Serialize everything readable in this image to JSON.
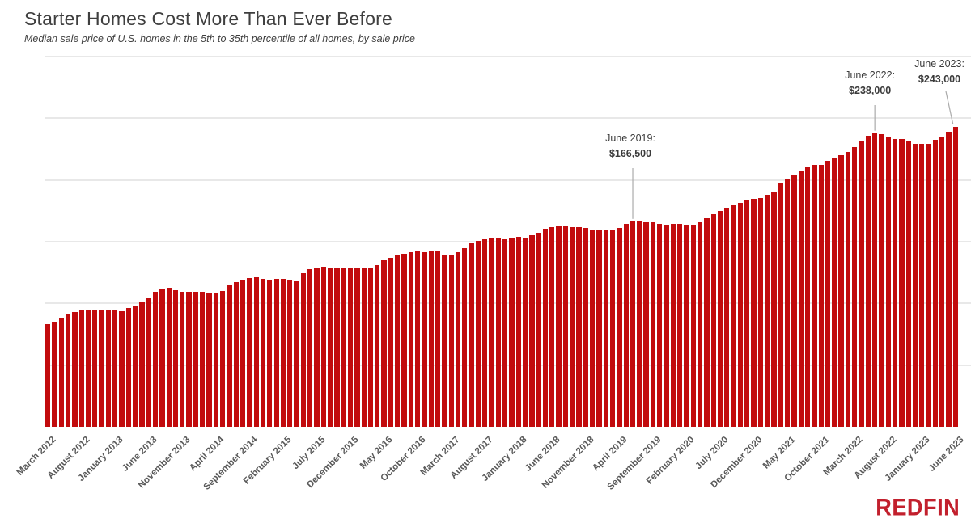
{
  "header": {
    "title": "Starter Homes Cost More Than Ever Before",
    "subtitle": "Median sale price of U.S. homes in the 5th to 35th percentile of all homes, by sale price"
  },
  "chart_data": {
    "type": "bar",
    "title": "Starter Homes Cost More Than Ever Before",
    "subtitle": "Median sale price of U.S. homes in the 5th to 35th percentile of all homes, by sale price",
    "unit": "USD",
    "bar_color": "#c20b0d",
    "gridline_color": "#e8e8e8",
    "legend": "none",
    "ylim": [
      0,
      325000
    ],
    "gridline_interval": 50000,
    "gridlines": [
      50000,
      100000,
      150000,
      200000,
      250000,
      300000
    ],
    "x_start": "March 2012",
    "x_end": "June 2023",
    "x_tick_step": 5,
    "x_tick_labels": [
      "March 2012",
      "August 2012",
      "January 2013",
      "June 2013",
      "November 2013",
      "April 2014",
      "September 2014",
      "February 2015",
      "July 2015",
      "December 2015",
      "May 2016",
      "October 2016",
      "March 2017",
      "August 2017",
      "January 2018",
      "June 2018",
      "November 2018",
      "April 2019",
      "September 2019",
      "February 2020",
      "July 2020",
      "December 2020",
      "May 2021",
      "October 2021",
      "March 2022",
      "August 2022",
      "January 2023",
      "June 2023"
    ],
    "values": [
      83500,
      85500,
      88500,
      91000,
      93000,
      94500,
      94500,
      94500,
      95000,
      94500,
      94500,
      93500,
      96000,
      98000,
      101000,
      104500,
      109500,
      111500,
      112500,
      110500,
      109500,
      109500,
      109500,
      109500,
      109000,
      108500,
      110000,
      115000,
      117000,
      119500,
      120500,
      121000,
      120000,
      119500,
      120000,
      120000,
      119500,
      118000,
      124500,
      127500,
      129000,
      129500,
      129000,
      128500,
      128500,
      129000,
      128500,
      128500,
      129000,
      131000,
      135000,
      137000,
      139500,
      140000,
      141500,
      142000,
      141500,
      142000,
      142000,
      139500,
      139500,
      141500,
      145000,
      149000,
      150500,
      152000,
      152500,
      152500,
      152000,
      152500,
      154000,
      153500,
      155500,
      157500,
      160500,
      162000,
      163000,
      162500,
      162000,
      162000,
      161000,
      160000,
      159500,
      159500,
      160000,
      161000,
      164500,
      166500,
      166500,
      166000,
      165500,
      164500,
      164000,
      164500,
      164500,
      164000,
      163500,
      166000,
      169000,
      172000,
      175000,
      177500,
      179500,
      181500,
      183500,
      184500,
      185500,
      188000,
      190000,
      198000,
      200500,
      204000,
      207000,
      210000,
      212500,
      212500,
      215500,
      217500,
      220000,
      223000,
      227000,
      232000,
      236000,
      238000,
      237000,
      235500,
      233000,
      233500,
      232000,
      229500,
      229000,
      229000,
      232500,
      235000,
      239000,
      243000
    ],
    "annotations": [
      {
        "label": "June 2019:",
        "value_label": "$166,500",
        "month": "June 2019",
        "value": 166500,
        "bar_index": 87
      },
      {
        "label": "June 2022:",
        "value_label": "$238,000",
        "month": "June 2022",
        "value": 238000,
        "bar_index": 123
      },
      {
        "label": "June 2023:",
        "value_label": "$243,000",
        "month": "June 2023",
        "value": 243000,
        "bar_index": 135
      }
    ]
  },
  "footer": {
    "logo_text": "REDFIN",
    "logo_color": "#c2202d"
  }
}
